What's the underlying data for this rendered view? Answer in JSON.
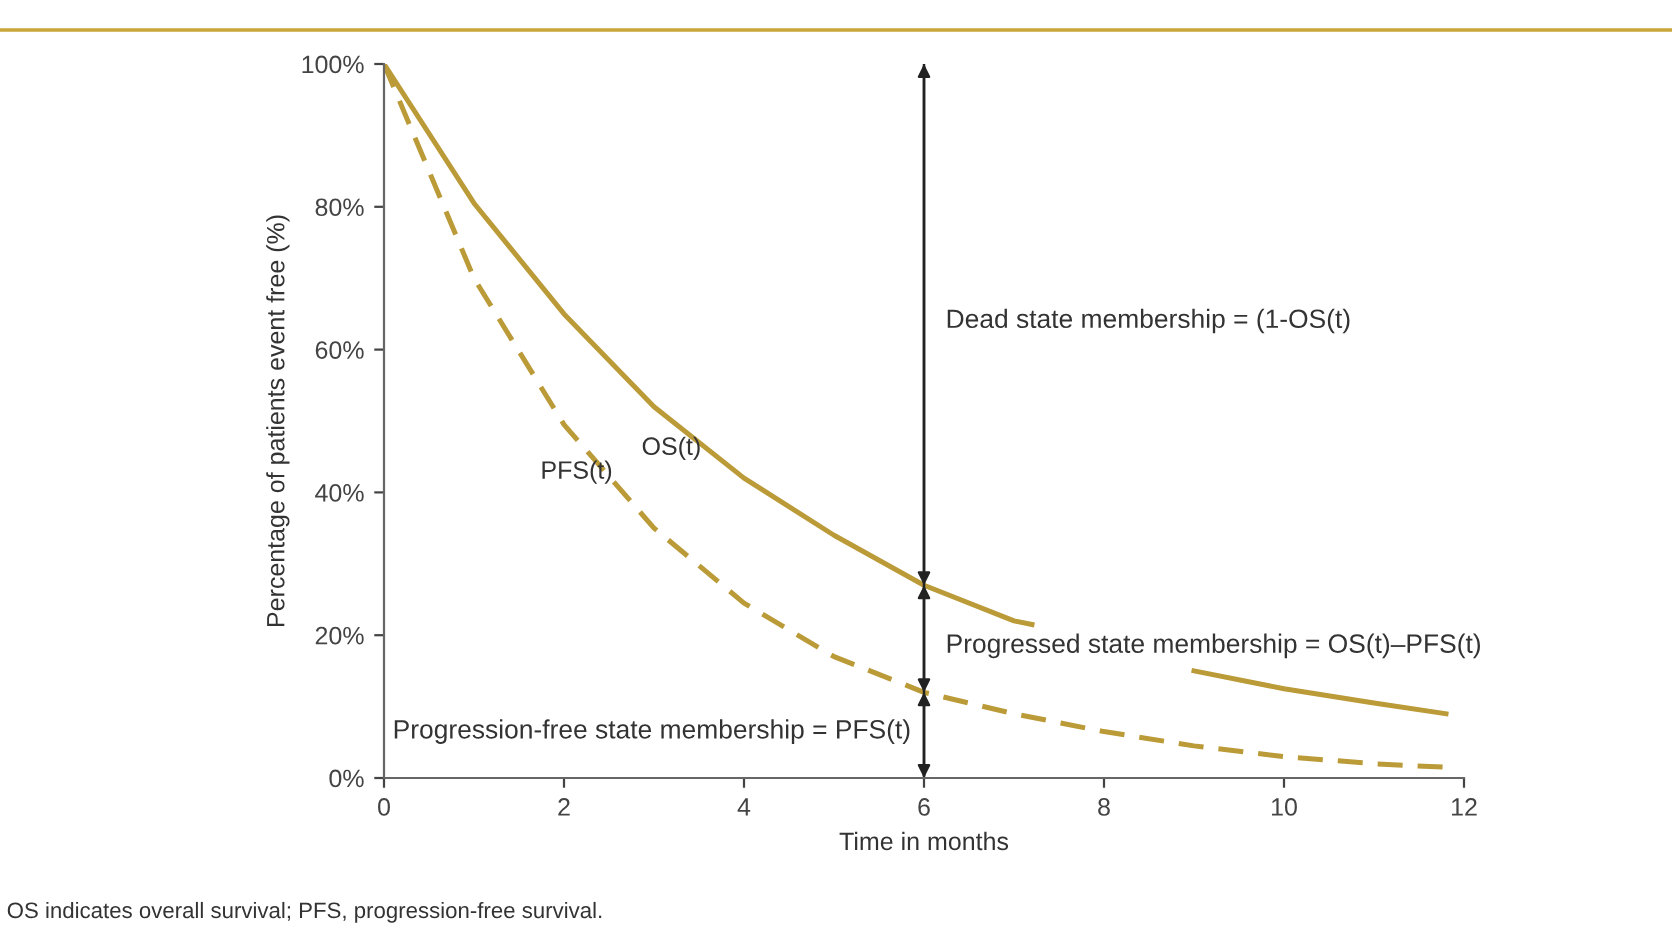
{
  "chart_data": {
    "type": "line",
    "xlabel": "Time in months",
    "ylabel": "Percentage of patients event free (%)",
    "xlim": [
      0,
      12
    ],
    "ylim": [
      0,
      100
    ],
    "xticks": [
      0,
      2,
      4,
      6,
      8,
      10,
      12
    ],
    "yticks": [
      {
        "value": 0,
        "label": "0%"
      },
      {
        "value": 20,
        "label": "20%"
      },
      {
        "value": 40,
        "label": "40%"
      },
      {
        "value": 60,
        "label": "60%"
      },
      {
        "value": 80,
        "label": "80%"
      },
      {
        "value": 100,
        "label": "100%"
      }
    ],
    "grid": false,
    "legend": false,
    "marker": "none",
    "ref_lines": [
      {
        "axis": "x",
        "value": 6,
        "label": null
      }
    ],
    "series": [
      {
        "name": "OS(t)",
        "color": "#bb9a38",
        "line_style": "solid",
        "x": [
          0,
          1,
          2,
          3,
          4,
          5,
          6,
          7,
          7.2,
          8,
          9,
          10,
          11,
          11.8
        ],
        "values": [
          100,
          80.5,
          65,
          52,
          42,
          34,
          27,
          22,
          21.5,
          null,
          15,
          12.5,
          10.5,
          9
        ]
      },
      {
        "name": "PFS(t)",
        "color": "#bb9a38",
        "line_style": "dashed",
        "x": [
          0,
          1,
          2,
          3,
          4,
          5,
          6,
          7,
          8,
          9,
          10,
          11,
          11.8
        ],
        "values": [
          100,
          70,
          49.5,
          35,
          24.5,
          17,
          12,
          9,
          6.5,
          4.5,
          3,
          2,
          1.5
        ]
      }
    ],
    "annotations": [
      "Dead state membership = (1-OS(t)",
      "Progressed state membership = OS(t)–PFS(t)",
      "Progression-free state membership = PFS(t)",
      "OS indicates overall survival; PFS, progression-free survival."
    ]
  }
}
